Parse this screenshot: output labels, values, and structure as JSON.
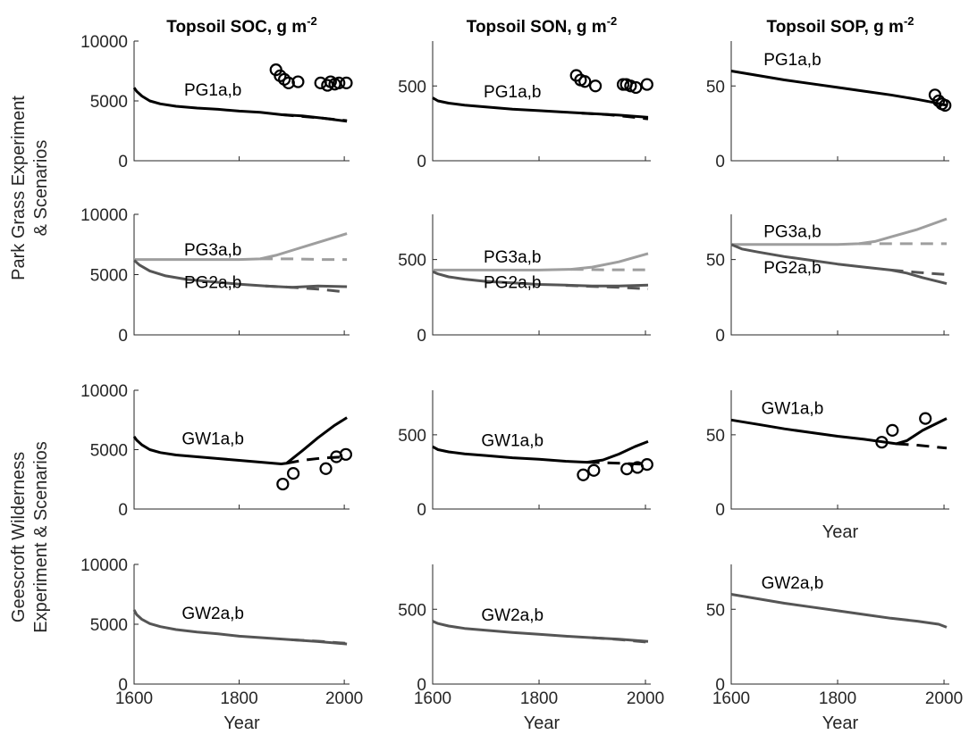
{
  "figure": {
    "row_labels": [
      [
        "Park Grass Experiment",
        "& Scenarios"
      ],
      [
        "Geescroft Wilderness",
        "Experiment & Scenarios"
      ]
    ],
    "column_titles": [
      {
        "main": "Topsoil SOC, g m",
        "sup": "-2"
      },
      {
        "main": "Topsoil SON, g m",
        "sup": "-2"
      },
      {
        "main": "Topsoil SOP, g m",
        "sup": "-2"
      }
    ],
    "xlabel": "Year",
    "colors": {
      "black": "#000000",
      "dark_gray": "#555555",
      "light_gray": "#9e9e9e",
      "axis": "#262626"
    }
  },
  "chart_data": [
    {
      "type": "line",
      "title": "Topsoil SOC, g m-2",
      "xlim": [
        1600,
        2010
      ],
      "ylim": [
        0,
        10000
      ],
      "yticks": [
        0,
        5000,
        10000
      ],
      "xticks": [],
      "xlabel": "",
      "series": [
        {
          "name": "PG1a,b",
          "label_at": [
            1750,
            5450
          ],
          "color": "black",
          "style": "solid",
          "x": [
            1600,
            1605,
            1615,
            1630,
            1650,
            1680,
            1720,
            1760,
            1800,
            1840,
            1880,
            1920,
            1960,
            2005
          ],
          "y": [
            6100,
            5800,
            5400,
            5000,
            4750,
            4550,
            4400,
            4300,
            4150,
            4050,
            3850,
            3750,
            3550,
            3300
          ]
        },
        {
          "color": "black",
          "style": "dashed",
          "x": [
            1880,
            1920,
            1960,
            2005
          ],
          "y": [
            3850,
            3700,
            3550,
            3350
          ]
        },
        {
          "type": "scatter",
          "color": "black",
          "x": [
            1870,
            1878,
            1886,
            1894,
            1912,
            1955,
            1968,
            1974,
            1982,
            1990,
            2004
          ],
          "y": [
            7600,
            7100,
            6800,
            6500,
            6600,
            6500,
            6300,
            6600,
            6400,
            6500,
            6500
          ]
        }
      ]
    },
    {
      "type": "line",
      "title": "Topsoil SON, g m-2",
      "xlim": [
        1600,
        2010
      ],
      "ylim": [
        0,
        800
      ],
      "yticks": [
        0,
        500
      ],
      "xticks": [],
      "xlabel": "",
      "series": [
        {
          "name": "PG1a,b",
          "label_at": [
            1750,
            425
          ],
          "color": "black",
          "style": "solid",
          "x": [
            1600,
            1610,
            1630,
            1660,
            1700,
            1750,
            1800,
            1850,
            1900,
            1950,
            2005
          ],
          "y": [
            420,
            400,
            385,
            372,
            360,
            345,
            335,
            325,
            315,
            305,
            290
          ]
        },
        {
          "color": "black",
          "style": "dashed",
          "x": [
            1880,
            1930,
            1980,
            2005
          ],
          "y": [
            318,
            308,
            290,
            280
          ]
        },
        {
          "type": "scatter",
          "color": "black",
          "x": [
            1870,
            1878,
            1886,
            1906,
            1958,
            1964,
            1972,
            1982,
            2003
          ],
          "y": [
            570,
            540,
            530,
            500,
            510,
            510,
            500,
            490,
            510
          ]
        }
      ]
    },
    {
      "type": "line",
      "title": "Topsoil SOP, g m-2",
      "xlim": [
        1600,
        2010
      ],
      "ylim": [
        0,
        80
      ],
      "yticks": [
        0,
        50
      ],
      "xticks": [],
      "xlabel": "",
      "series": [
        {
          "name": "PG1a,b",
          "label_at": [
            1715,
            64
          ],
          "color": "black",
          "style": "solid",
          "x": [
            1600,
            1650,
            1700,
            1750,
            1800,
            1850,
            1900,
            1950,
            1980,
            2005
          ],
          "y": [
            60,
            57,
            54,
            51.5,
            49,
            46.5,
            44,
            41,
            39,
            37
          ]
        },
        {
          "type": "scatter",
          "color": "black",
          "x": [
            1983,
            1990,
            1996,
            2002
          ],
          "y": [
            44,
            40,
            38,
            37
          ]
        }
      ]
    },
    {
      "type": "line",
      "xlim": [
        1600,
        2010
      ],
      "ylim": [
        0,
        10000
      ],
      "yticks": [
        0,
        5000,
        10000
      ],
      "xticks": [],
      "xlabel": "",
      "series": [
        {
          "name": "PG3a,b",
          "label_at": [
            1750,
            6600
          ],
          "color": "light_gray",
          "style": "solid",
          "x": [
            1600,
            1700,
            1800,
            1840,
            1870,
            1900,
            1930,
            1960,
            1990,
            2005
          ],
          "y": [
            6250,
            6250,
            6250,
            6300,
            6600,
            7000,
            7400,
            7800,
            8200,
            8400
          ]
        },
        {
          "color": "light_gray",
          "style": "dashed",
          "x": [
            1840,
            1900,
            1960,
            2005
          ],
          "y": [
            6300,
            6300,
            6250,
            6250
          ]
        },
        {
          "name": "PG2a,b",
          "label_at": [
            1750,
            3900
          ],
          "color": "dark_gray",
          "style": "solid",
          "x": [
            1600,
            1610,
            1630,
            1660,
            1700,
            1750,
            1800,
            1850,
            1900,
            1950,
            2005
          ],
          "y": [
            6200,
            5800,
            5300,
            4900,
            4600,
            4400,
            4200,
            4050,
            3950,
            4050,
            4000
          ]
        },
        {
          "color": "dark_gray",
          "style": "dashed",
          "x": [
            1850,
            1900,
            1950,
            2005
          ],
          "y": [
            4050,
            3950,
            3800,
            3550
          ]
        }
      ]
    },
    {
      "type": "line",
      "xlim": [
        1600,
        2010
      ],
      "ylim": [
        0,
        800
      ],
      "yticks": [
        0,
        500
      ],
      "xticks": [],
      "xlabel": "",
      "series": [
        {
          "name": "PG3a,b",
          "label_at": [
            1750,
            480
          ],
          "color": "light_gray",
          "style": "solid",
          "x": [
            1600,
            1700,
            1800,
            1860,
            1900,
            1950,
            2005
          ],
          "y": [
            430,
            430,
            430,
            435,
            450,
            485,
            540
          ]
        },
        {
          "color": "light_gray",
          "style": "dashed",
          "x": [
            1860,
            1920,
            2005
          ],
          "y": [
            435,
            432,
            432
          ]
        },
        {
          "name": "PG2a,b",
          "label_at": [
            1750,
            310
          ],
          "color": "dark_gray",
          "style": "solid",
          "x": [
            1600,
            1610,
            1630,
            1660,
            1700,
            1750,
            1800,
            1850,
            1900,
            1950,
            2005
          ],
          "y": [
            420,
            405,
            385,
            370,
            355,
            345,
            335,
            330,
            325,
            325,
            330
          ]
        },
        {
          "color": "dark_gray",
          "style": "dashed",
          "x": [
            1850,
            1900,
            1950,
            2005
          ],
          "y": [
            328,
            322,
            315,
            305
          ]
        }
      ]
    },
    {
      "type": "line",
      "xlim": [
        1600,
        2010
      ],
      "ylim": [
        0,
        80
      ],
      "yticks": [
        0,
        50
      ],
      "xticks": [],
      "xlabel": "",
      "series": [
        {
          "name": "PG3a,b",
          "label_at": [
            1715,
            65
          ],
          "color": "light_gray",
          "style": "solid",
          "x": [
            1600,
            1700,
            1800,
            1840,
            1870,
            1900,
            1950,
            2005
          ],
          "y": [
            60,
            60,
            60,
            60.5,
            62,
            65,
            70,
            77
          ]
        },
        {
          "color": "light_gray",
          "style": "dashed",
          "x": [
            1840,
            1900,
            2005
          ],
          "y": [
            60.5,
            60.5,
            60.5
          ]
        },
        {
          "name": "PG2a,b",
          "label_at": [
            1715,
            41
          ],
          "color": "dark_gray",
          "style": "solid",
          "x": [
            1600,
            1620,
            1650,
            1700,
            1750,
            1800,
            1850,
            1900,
            1930,
            1960,
            2005
          ],
          "y": [
            60,
            57,
            55,
            52,
            49.5,
            47,
            45,
            43,
            41,
            38,
            34
          ]
        },
        {
          "color": "dark_gray",
          "style": "dashed",
          "x": [
            1900,
            1950,
            2005
          ],
          "y": [
            43,
            41.5,
            40
          ]
        }
      ]
    },
    {
      "type": "line",
      "xlim": [
        1600,
        2010
      ],
      "ylim": [
        0,
        10000
      ],
      "yticks": [
        0,
        5000,
        10000
      ],
      "xticks": [],
      "xlabel": "",
      "series": [
        {
          "name": "GW1a,b",
          "label_at": [
            1750,
            5450
          ],
          "color": "black",
          "style": "solid",
          "x": [
            1600,
            1605,
            1615,
            1630,
            1650,
            1680,
            1720,
            1760,
            1800,
            1840,
            1880,
            1890,
            1920,
            1950,
            1980,
            2005
          ],
          "y": [
            6100,
            5800,
            5400,
            5000,
            4750,
            4550,
            4400,
            4250,
            4100,
            3950,
            3800,
            3850,
            4900,
            6000,
            7000,
            7700
          ]
        },
        {
          "color": "black",
          "style": "dashed",
          "x": [
            1890,
            1920,
            1960,
            2005
          ],
          "y": [
            3850,
            4100,
            4300,
            4400
          ]
        },
        {
          "type": "scatter",
          "color": "black",
          "x": [
            1883,
            1903,
            1965,
            1985,
            2003
          ],
          "y": [
            2100,
            3000,
            3400,
            4400,
            4600
          ]
        }
      ]
    },
    {
      "type": "line",
      "xlim": [
        1600,
        2010
      ],
      "ylim": [
        0,
        800
      ],
      "yticks": [
        0,
        500
      ],
      "xticks": [],
      "xlabel": "",
      "series": [
        {
          "name": "GW1a,b",
          "label_at": [
            1750,
            425
          ],
          "color": "black",
          "style": "solid",
          "x": [
            1600,
            1610,
            1630,
            1660,
            1700,
            1750,
            1800,
            1850,
            1890,
            1920,
            1950,
            1980,
            2005
          ],
          "y": [
            420,
            400,
            385,
            372,
            360,
            345,
            335,
            322,
            315,
            330,
            370,
            420,
            455
          ]
        },
        {
          "color": "black",
          "style": "dashed",
          "x": [
            1890,
            1940,
            2005
          ],
          "y": [
            315,
            310,
            300
          ]
        },
        {
          "type": "scatter",
          "color": "black",
          "x": [
            1883,
            1903,
            1965,
            1985,
            2003
          ],
          "y": [
            230,
            260,
            270,
            280,
            300
          ]
        }
      ]
    },
    {
      "type": "line",
      "xlim": [
        1600,
        2010
      ],
      "ylim": [
        0,
        80
      ],
      "yticks": [
        0,
        50
      ],
      "xticks": [],
      "xlabel": "Year",
      "series": [
        {
          "name": "GW1a,b",
          "label_at": [
            1715,
            64
          ],
          "color": "black",
          "style": "solid",
          "x": [
            1600,
            1650,
            1700,
            1750,
            1800,
            1850,
            1880,
            1910,
            1930,
            1960,
            2005
          ],
          "y": [
            60,
            57,
            54,
            51.5,
            49,
            47,
            45.5,
            44,
            46,
            53,
            61
          ]
        },
        {
          "color": "black",
          "style": "dashed",
          "x": [
            1910,
            1950,
            2005
          ],
          "y": [
            44,
            43,
            41
          ]
        },
        {
          "type": "scatter",
          "color": "black",
          "x": [
            1883,
            1903,
            1965
          ],
          "y": [
            45,
            53,
            61
          ]
        }
      ]
    },
    {
      "type": "line",
      "xlim": [
        1600,
        2010
      ],
      "ylim": [
        0,
        10000
      ],
      "yticks": [
        0,
        5000,
        10000
      ],
      "xticks": [
        1600,
        1800,
        2000
      ],
      "xlabel": "Year",
      "series": [
        {
          "name": "GW2a,b",
          "label_at": [
            1750,
            5450
          ],
          "color": "dark_gray",
          "style": "solid",
          "x": [
            1600,
            1605,
            1615,
            1630,
            1650,
            1680,
            1720,
            1760,
            1800,
            1850,
            1900,
            1950,
            2005
          ],
          "y": [
            6200,
            5800,
            5400,
            5050,
            4800,
            4550,
            4350,
            4200,
            4000,
            3850,
            3700,
            3550,
            3350
          ]
        },
        {
          "color": "dark_gray",
          "style": "dashed",
          "x": [
            1900,
            1950,
            2005
          ],
          "y": [
            3700,
            3580,
            3400
          ]
        }
      ]
    },
    {
      "type": "line",
      "xlim": [
        1600,
        2010
      ],
      "ylim": [
        0,
        800
      ],
      "yticks": [
        0,
        500
      ],
      "xticks": [
        1600,
        1800,
        2000
      ],
      "xlabel": "Year",
      "series": [
        {
          "name": "GW2a,b",
          "label_at": [
            1750,
            425
          ],
          "color": "dark_gray",
          "style": "solid",
          "x": [
            1600,
            1610,
            1630,
            1660,
            1700,
            1750,
            1800,
            1850,
            1900,
            1950,
            2005
          ],
          "y": [
            420,
            405,
            388,
            372,
            360,
            345,
            333,
            320,
            310,
            300,
            285
          ]
        },
        {
          "color": "dark_gray",
          "style": "dashed",
          "x": [
            1900,
            1950,
            2005
          ],
          "y": [
            310,
            298,
            280
          ]
        }
      ]
    },
    {
      "type": "line",
      "xlim": [
        1600,
        2010
      ],
      "ylim": [
        0,
        80
      ],
      "yticks": [
        0,
        50
      ],
      "xticks": [
        1600,
        1800,
        2000
      ],
      "xlabel": "Year",
      "series": [
        {
          "name": "GW2a,b",
          "label_at": [
            1715,
            64
          ],
          "color": "dark_gray",
          "style": "solid",
          "x": [
            1600,
            1650,
            1700,
            1750,
            1800,
            1850,
            1900,
            1950,
            1990,
            2005
          ],
          "y": [
            60,
            57,
            54,
            51.5,
            49,
            46.5,
            44,
            42,
            40,
            38
          ]
        }
      ]
    }
  ]
}
